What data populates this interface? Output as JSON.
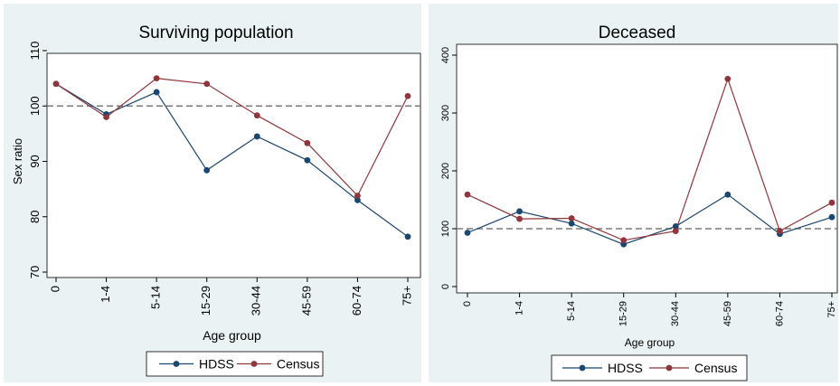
{
  "chart_data": [
    {
      "type": "line",
      "title": "Surviving population",
      "xlabel": "Age group",
      "ylabel": "Sex ratio",
      "categories": [
        "0",
        "1-4",
        "5-14",
        "15-29",
        "30-44",
        "45-59",
        "60-74",
        "75+"
      ],
      "series": [
        {
          "name": "HDSS",
          "color": "#1a476f",
          "values": [
            104,
            98.5,
            102.5,
            88.4,
            94.5,
            90.2,
            83.0,
            76.4
          ]
        },
        {
          "name": "Census",
          "color": "#90353b",
          "values": [
            104,
            98.0,
            105.0,
            104.0,
            98.3,
            93.3,
            83.8,
            101.8
          ]
        }
      ],
      "reference_line": 100,
      "ylim": [
        70,
        110
      ],
      "yticks": [
        70,
        80,
        90,
        100,
        110
      ],
      "grid": false,
      "legend_position": "bottom"
    },
    {
      "type": "line",
      "title": "Deceased",
      "xlabel": "Age group",
      "ylabel": "",
      "categories": [
        "0",
        "1-4",
        "5-14",
        "15-29",
        "30-44",
        "45-59",
        "60-74",
        "75+"
      ],
      "series": [
        {
          "name": "HDSS",
          "color": "#1a476f",
          "values": [
            93,
            130,
            109,
            73,
            104,
            159,
            91,
            120
          ]
        },
        {
          "name": "Census",
          "color": "#90353b",
          "values": [
            159,
            117,
            118,
            80,
            96,
            359,
            96,
            145
          ]
        }
      ],
      "reference_line": 100,
      "ylim": [
        0,
        400
      ],
      "yticks": [
        0,
        100,
        200,
        300,
        400
      ],
      "grid": false,
      "legend_position": "bottom"
    }
  ]
}
